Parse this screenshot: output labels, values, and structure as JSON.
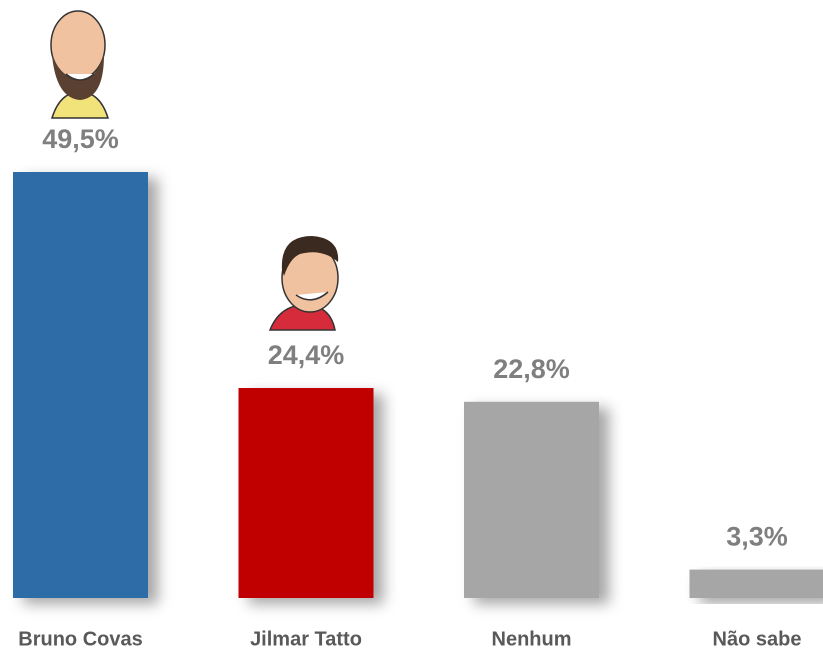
{
  "chart_data": {
    "type": "bar",
    "categories": [
      "Bruno Covas",
      "Jilmar Tatto",
      "Nenhum",
      "Não sabe"
    ],
    "values": [
      49.5,
      24.4,
      22.8,
      3.3
    ],
    "value_labels": [
      "49,5%",
      "24,4%",
      "22,8%",
      "3,3%"
    ],
    "colors": [
      "#2e6ca8",
      "#c00000",
      "#a6a6a6",
      "#a6a6a6"
    ]
  }
}
